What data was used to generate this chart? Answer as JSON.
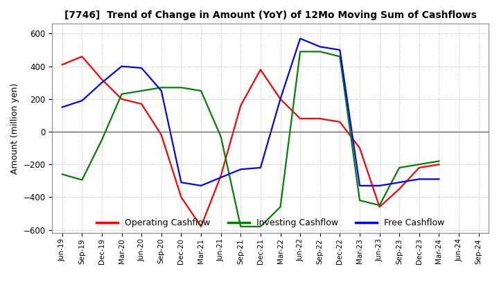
{
  "title": "[7746]  Trend of Change in Amount (YoY) of 12Mo Moving Sum of Cashflows",
  "ylabel": "Amount (million yen)",
  "x_labels": [
    "Jun-19",
    "Sep-19",
    "Dec-19",
    "Mar-20",
    "Jun-20",
    "Sep-20",
    "Dec-20",
    "Mar-21",
    "Jun-21",
    "Sep-21",
    "Dec-21",
    "Mar-22",
    "Jun-22",
    "Sep-22",
    "Dec-22",
    "Mar-23",
    "Jun-23",
    "Sep-23",
    "Dec-23",
    "Mar-24",
    "Jun-24",
    "Sep-24"
  ],
  "operating": [
    410,
    460,
    320,
    200,
    170,
    -20,
    -400,
    -580,
    -270,
    160,
    380,
    200,
    80,
    80,
    60,
    -100,
    -460,
    -350,
    -220,
    -200,
    null,
    null
  ],
  "investing": [
    -260,
    -295,
    -50,
    230,
    250,
    270,
    270,
    250,
    -30,
    -580,
    -580,
    -460,
    490,
    490,
    460,
    -420,
    -450,
    -220,
    -200,
    -180,
    null,
    null
  ],
  "free": [
    150,
    190,
    300,
    400,
    390,
    250,
    -310,
    -330,
    -280,
    -230,
    -220,
    200,
    570,
    520,
    500,
    -330,
    -330,
    -310,
    -290,
    -290,
    null,
    null
  ],
  "ylim": [
    -620,
    660
  ],
  "yticks": [
    -600,
    -400,
    -200,
    0,
    200,
    400,
    600
  ],
  "operating_color": "#ff0000",
  "investing_color": "#008000",
  "free_color": "#0000ff",
  "background_color": "#ffffff",
  "grid_color": "#aaaaaa"
}
